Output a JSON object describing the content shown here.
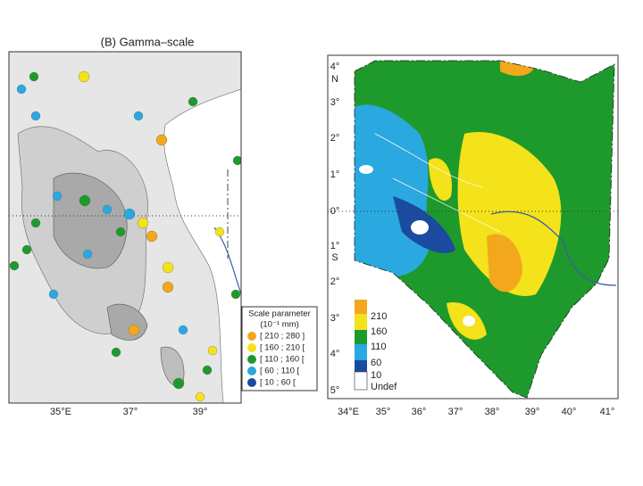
{
  "left_panel": {
    "title": "(B) Gamma–scale",
    "x_labels": [
      "35°E",
      "37°",
      "39°"
    ],
    "legend": {
      "title": "Scale parameter",
      "unit": "(10⁻¹ mm)",
      "items": [
        "[ 210 ; 280 ]",
        "[ 160 ; 210 [",
        "[ 110 ; 160 [",
        "[ 60 ; 110 [",
        "[ 10 ; 60 ["
      ]
    }
  },
  "right_panel": {
    "x_labels": [
      "34°E",
      "35°",
      "36°",
      "37°",
      "38°",
      "39°",
      "40°",
      "41°"
    ],
    "y_labels": [
      "4°",
      "N",
      "3°",
      "2°",
      "1°",
      "0°",
      "1°",
      "S",
      "2°",
      "3°",
      "4°",
      "5°"
    ],
    "colorbar_labels": [
      "210",
      "160",
      "110",
      "60",
      "10",
      "Undef"
    ]
  }
}
